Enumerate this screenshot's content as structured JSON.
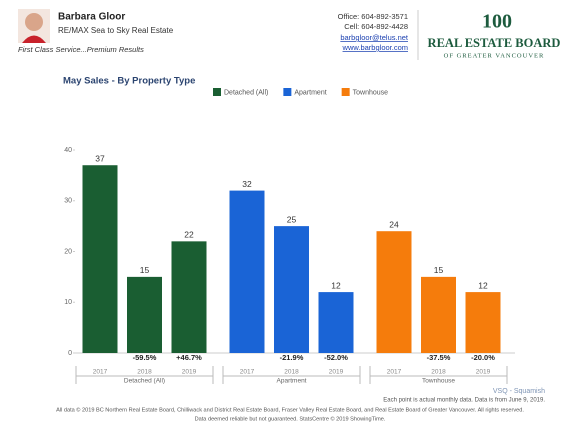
{
  "header": {
    "agent_name": "Barbara Gloor",
    "company": "RE/MAX Sea to Sky Real Estate",
    "tagline": "First Class Service...Premium Results",
    "office": "Office: 604-892-3571",
    "cell": "Cell: 604-892-4428",
    "email": "barbgloor@telus.net",
    "website": "www.barbgloor.com",
    "logo_number": "100",
    "logo_title": "REAL ESTATE BOARD",
    "logo_subtitle": "OF GREATER VANCOUVER"
  },
  "chart_data": {
    "type": "bar",
    "title": "May Sales - By Property Type",
    "categories": [
      "2017",
      "2018",
      "2019"
    ],
    "series": [
      {
        "name": "Detached (All)",
        "color": "#1a5e32",
        "values": [
          37,
          15,
          22
        ],
        "changes": [
          null,
          "-59.5%",
          "+46.7%"
        ]
      },
      {
        "name": "Apartment",
        "color": "#1a64d6",
        "values": [
          32,
          25,
          12
        ],
        "changes": [
          null,
          "-21.9%",
          "-52.0%"
        ]
      },
      {
        "name": "Townhouse",
        "color": "#f57c0c",
        "values": [
          24,
          15,
          12
        ],
        "changes": [
          null,
          "-37.5%",
          "-20.0%"
        ]
      }
    ],
    "ylim": [
      0,
      40
    ],
    "yticks": [
      0,
      10,
      20,
      30,
      40
    ],
    "grid": false
  },
  "footer": {
    "area": "VSQ - Squamish",
    "note": "Each point is actual monthly data. Data is from June 9, 2019.",
    "copyright": "All data © 2019 BC Northern Real Estate Board, Chilliwack and District Real Estate Board, Fraser Valley Real Estate Board, and Real Estate Board of Greater Vancouver. All rights reserved.",
    "disclaimer": "Data deemed reliable but not guaranteed. StatsCentre © 2019 ShowingTime."
  }
}
